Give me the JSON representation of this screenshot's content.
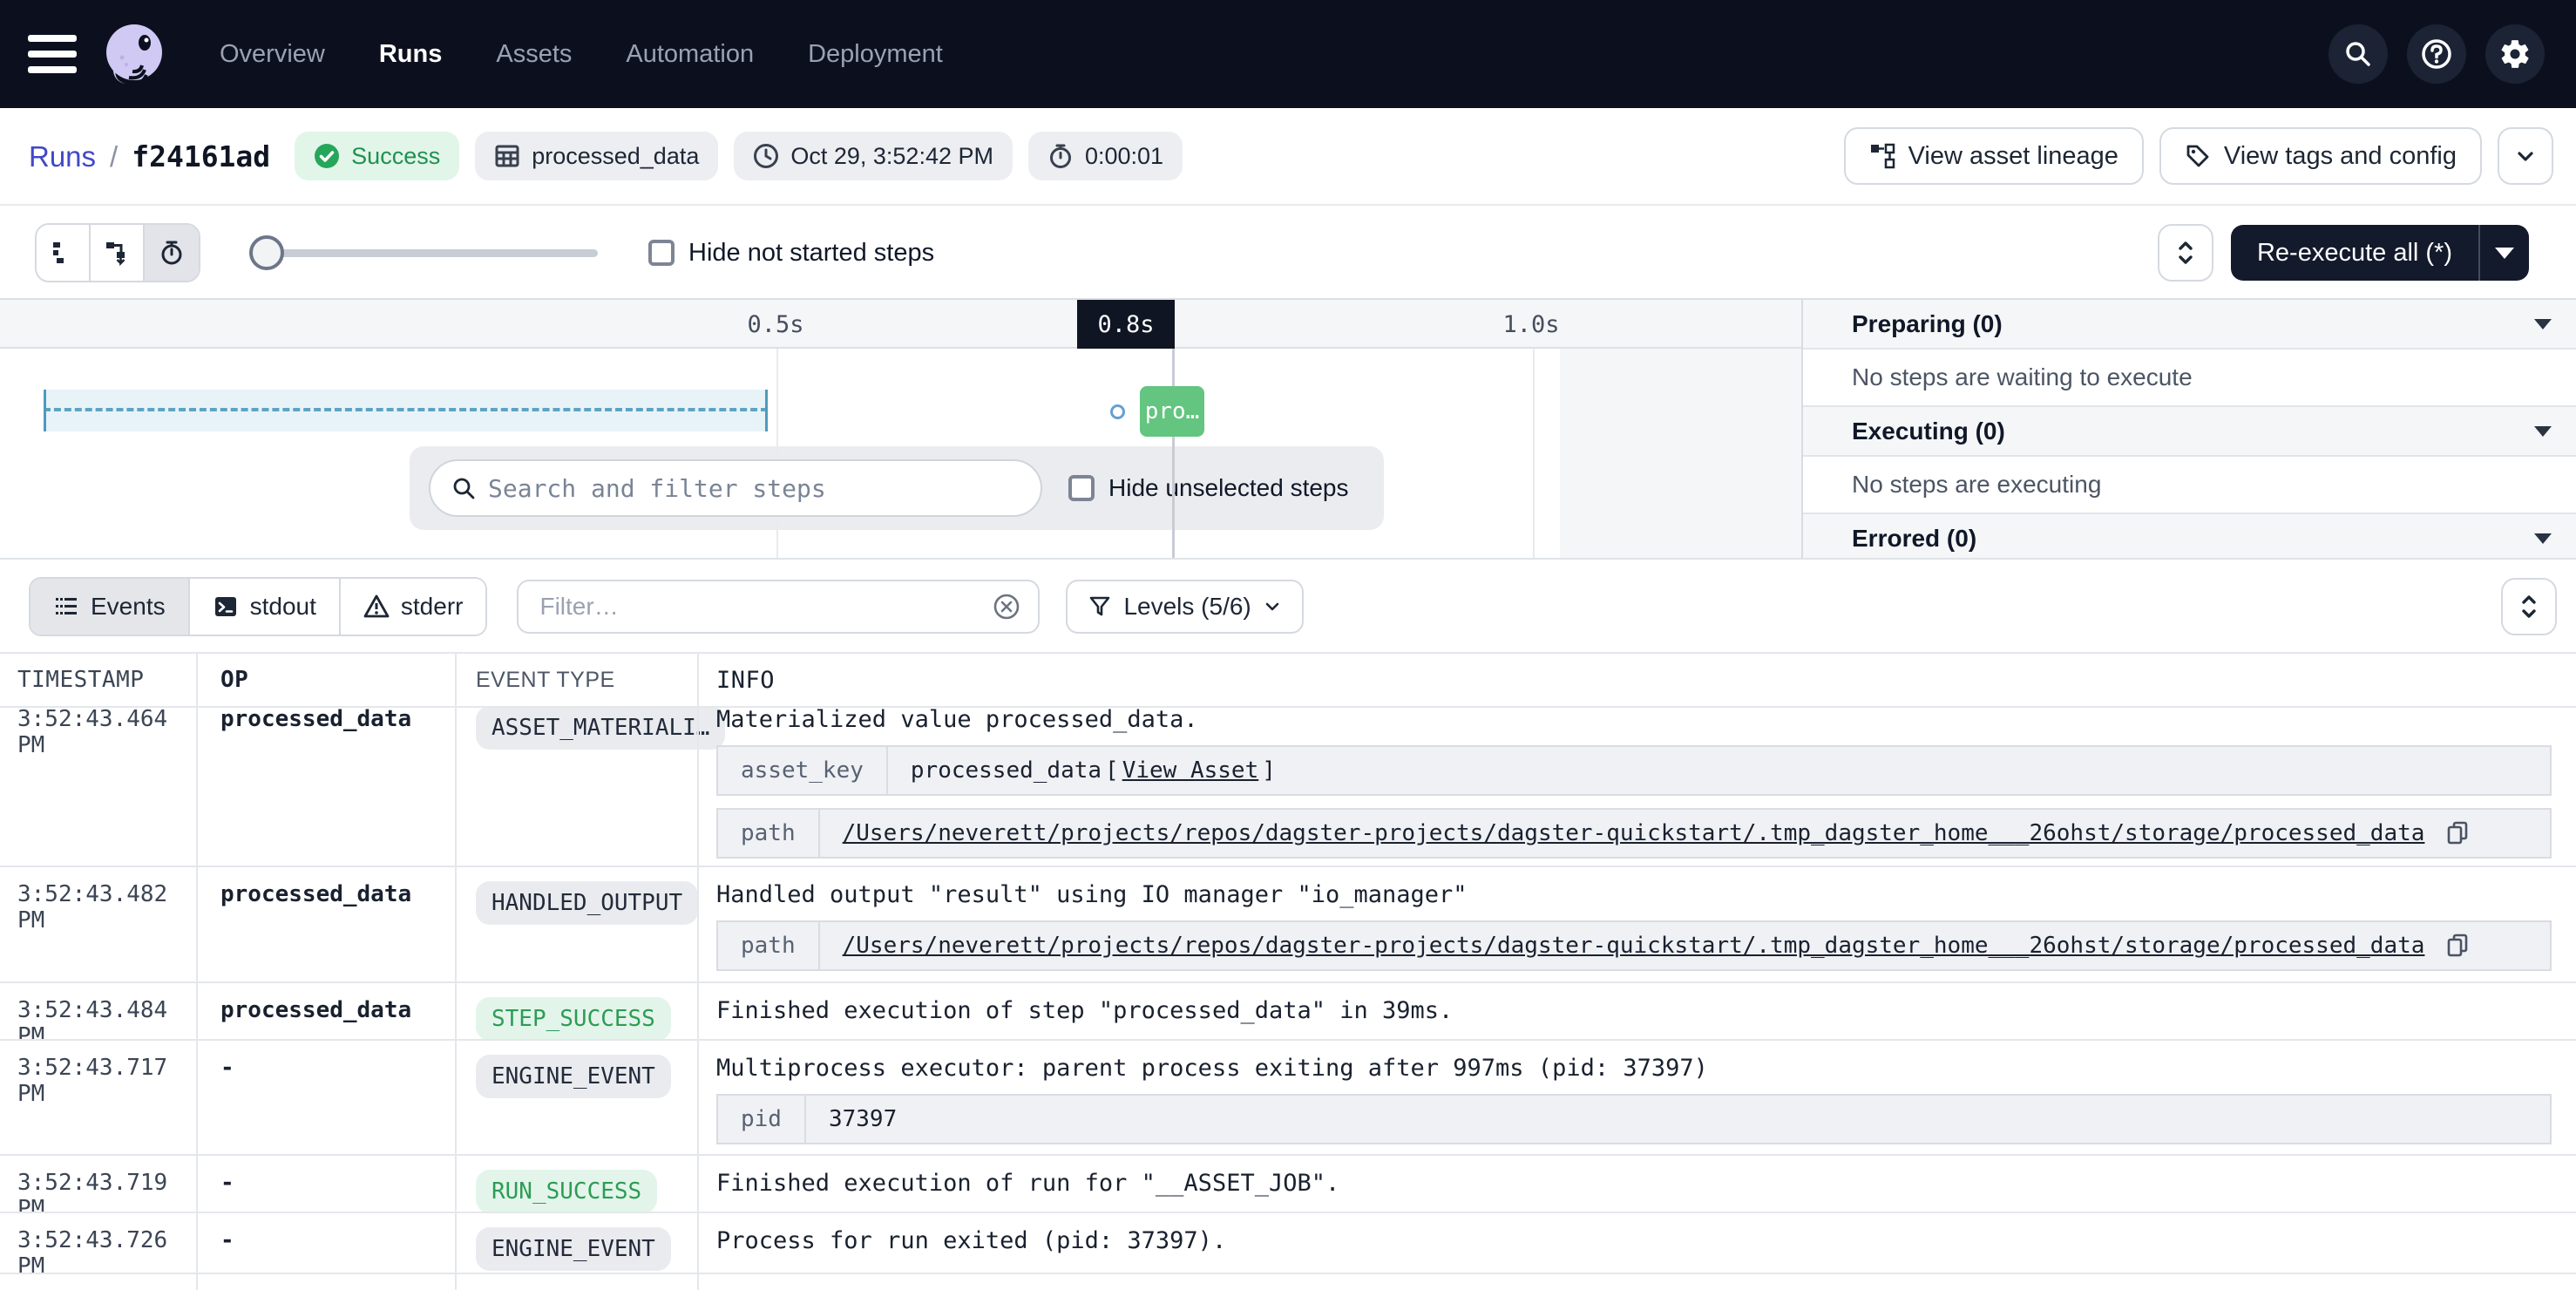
{
  "navbar": {
    "items": [
      {
        "label": "Overview",
        "active": false
      },
      {
        "label": "Runs",
        "active": true
      },
      {
        "label": "Assets",
        "active": false
      },
      {
        "label": "Automation",
        "active": false
      },
      {
        "label": "Deployment",
        "active": false
      }
    ]
  },
  "breadcrumb": {
    "root": "Runs",
    "separator": "/",
    "run_id": "f24161ad"
  },
  "run_tags": {
    "status": "Success",
    "asset": "processed_data",
    "started": "Oct 29, 3:52:42 PM",
    "duration": "0:00:01"
  },
  "header_actions": {
    "view_asset_lineage": "View asset lineage",
    "view_tags_config": "View tags and config"
  },
  "gantt_toolbar": {
    "hide_not_started_label": "Hide not started steps",
    "reexecute_label": "Re-execute all (*)"
  },
  "gantt": {
    "time_markers": [
      "0.5s",
      "1.0s"
    ],
    "cursor_label": "0.8s",
    "step_box_label": "pro…",
    "search_placeholder": "Search and filter steps",
    "hide_unselected_label": "Hide unselected steps"
  },
  "right_panel": {
    "sections": [
      {
        "title": "Preparing (0)",
        "body": "No steps are waiting to execute"
      },
      {
        "title": "Executing (0)",
        "body": "No steps are executing"
      },
      {
        "title": "Errored (0)",
        "body": null
      }
    ]
  },
  "events_toolbar": {
    "tabs": [
      {
        "label": "Events",
        "icon": "events-list-icon",
        "active": true
      },
      {
        "label": "stdout",
        "icon": "terminal-icon",
        "active": false
      },
      {
        "label": "stderr",
        "icon": "warning-icon",
        "active": false
      }
    ],
    "filter_placeholder": "Filter…",
    "levels_label": "Levels (5/6)"
  },
  "events_table": {
    "columns": [
      "TIMESTAMP",
      "OP",
      "EVENT TYPE",
      "INFO"
    ],
    "rows": [
      {
        "timestamp": "3:52:43.464 PM",
        "op": "processed_data",
        "event_type": "ASSET_MATERIALI…",
        "variant": "gray",
        "info": "Materialized value processed_data.",
        "height": 183,
        "clipped": true,
        "kv": [
          {
            "key": "asset_key",
            "value": "processed_data ",
            "link": "View Asset",
            "link_brackets": true
          },
          {
            "key": "path",
            "link": "/Users/neverett/projects/repos/dagster-projects/dagster-quickstart/.tmp_dagster_home___26ohst/storage/processed_data",
            "copy": true
          }
        ]
      },
      {
        "timestamp": "3:52:43.482 PM",
        "op": "processed_data",
        "event_type": "HANDLED_OUTPUT",
        "variant": "gray",
        "info": "Handled output \"result\" using IO manager \"io_manager\"",
        "height": 133,
        "kv": [
          {
            "key": "path",
            "link": "/Users/neverett/projects/repos/dagster-projects/dagster-quickstart/.tmp_dagster_home___26ohst/storage/processed_data",
            "copy": true
          }
        ]
      },
      {
        "timestamp": "3:52:43.484 PM",
        "op": "processed_data",
        "event_type": "STEP_SUCCESS",
        "variant": "green",
        "info": "Finished execution of step \"processed_data\" in 39ms.",
        "height": 66
      },
      {
        "timestamp": "3:52:43.717 PM",
        "op": "-",
        "event_type": "ENGINE_EVENT",
        "variant": "gray",
        "info": "Multiprocess executor: parent process exiting after 997ms (pid: 37397)",
        "height": 132,
        "kv": [
          {
            "key": "pid",
            "value": "37397"
          }
        ]
      },
      {
        "timestamp": "3:52:43.719 PM",
        "op": "-",
        "event_type": "RUN_SUCCESS",
        "variant": "green",
        "info": "Finished execution of run for \"__ASSET_JOB\".",
        "height": 66
      },
      {
        "timestamp": "3:52:43.726 PM",
        "op": "-",
        "event_type": "ENGINE_EVENT",
        "variant": "gray",
        "info": "Process for run exited (pid: 37397).",
        "height": 70
      }
    ]
  }
}
